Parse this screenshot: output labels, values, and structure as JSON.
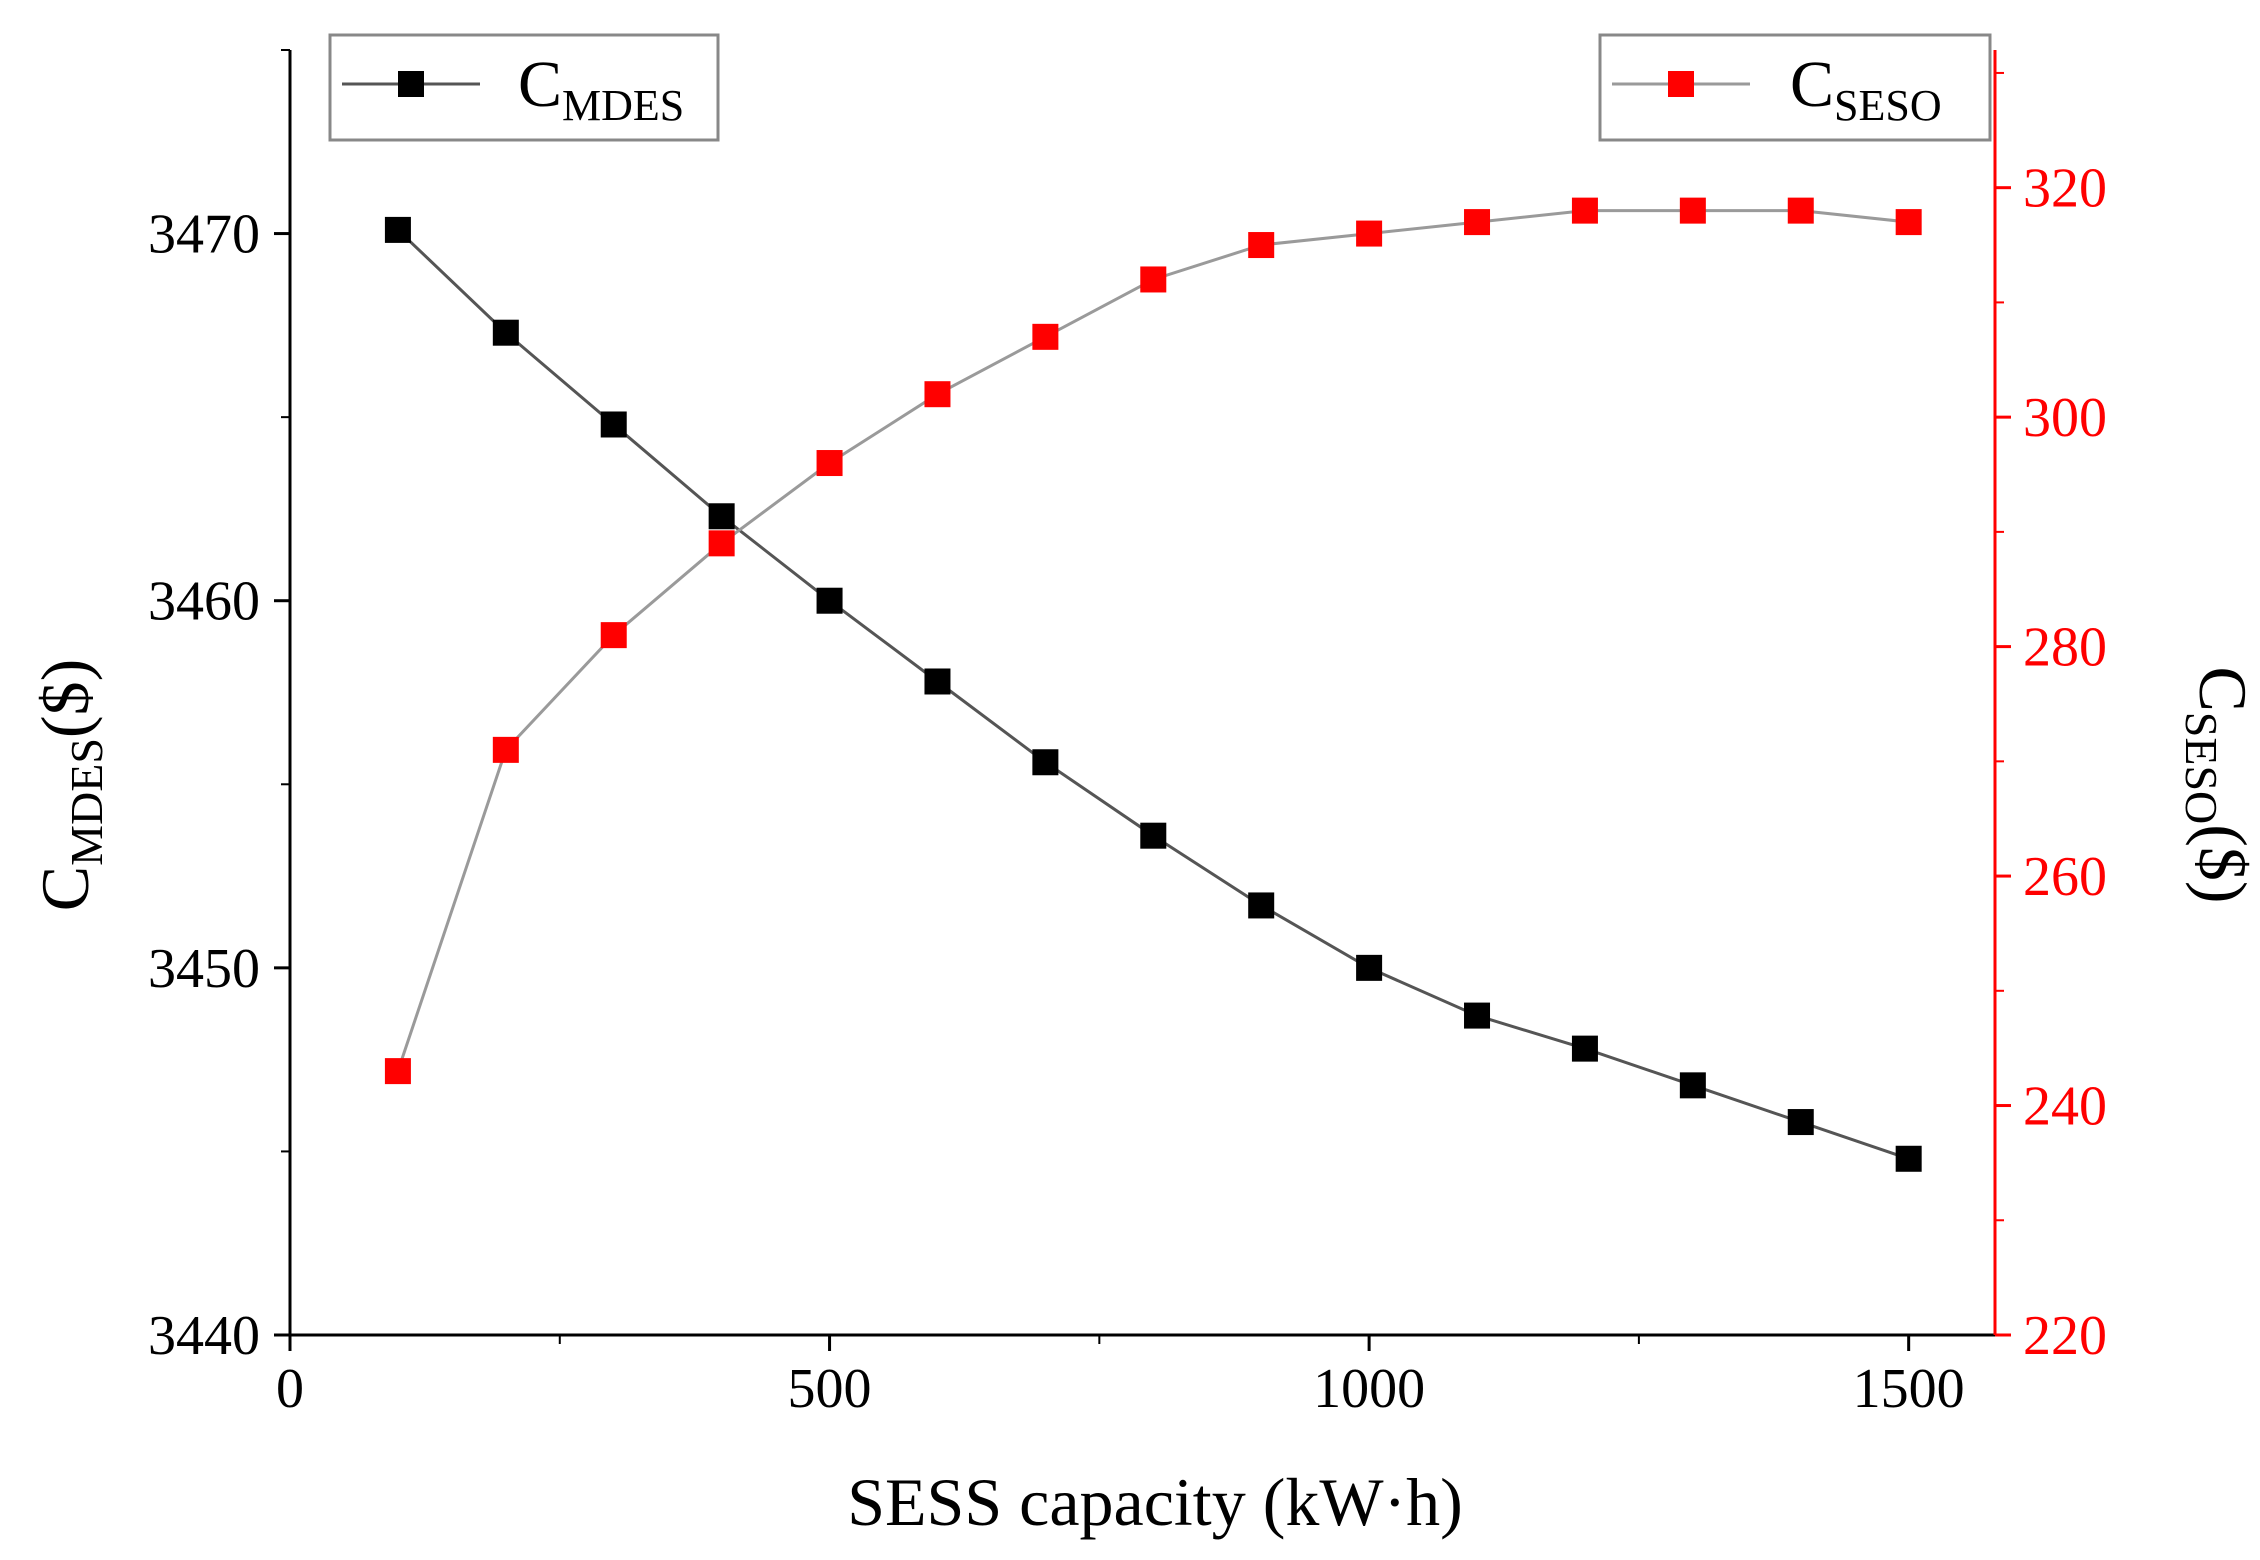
{
  "colors": {
    "left_series": "#000000",
    "right_series": "#ff0000",
    "right_axis": "#ff0000",
    "connector": "#9a9a9a"
  },
  "chart_data": {
    "type": "line",
    "xlabel": "SESS capacity (kW·h)",
    "ylabel_left": {
      "main": "C",
      "sub": "MDES",
      "suffix": "($)"
    },
    "ylabel_right": {
      "main": "C",
      "sub": "SESO",
      "suffix": "($)"
    },
    "xlim": [
      0,
      1580
    ],
    "xticks": [
      0,
      500,
      1000,
      1500
    ],
    "xtick_labels": [
      "0",
      "500",
      "1000",
      "1500"
    ],
    "ylim_left": [
      3440,
      3475
    ],
    "yticks_left": [
      3440,
      3450,
      3460,
      3470
    ],
    "ytick_labels_left": [
      "3440",
      "3450",
      "3460",
      "3470"
    ],
    "ylim_right": [
      220,
      332
    ],
    "yticks_right": [
      220,
      240,
      260,
      280,
      300,
      320
    ],
    "ytick_labels_right": [
      "220",
      "240",
      "260",
      "280",
      "300",
      "320"
    ],
    "x": [
      100,
      200,
      300,
      400,
      500,
      600,
      700,
      800,
      900,
      1000,
      1100,
      1200,
      1300,
      1400,
      1500
    ],
    "series": [
      {
        "name": "C_MDES",
        "legend_main": "C",
        "legend_sub": "MDES",
        "axis": "left",
        "marker": "square",
        "values": [
          3470.1,
          3467.3,
          3464.8,
          3462.3,
          3460.0,
          3457.8,
          3455.6,
          3453.6,
          3451.7,
          3450.0,
          3448.7,
          3447.8,
          3446.8,
          3445.8,
          3444.8
        ]
      },
      {
        "name": "C_SESO",
        "legend_main": "C",
        "legend_sub": "SESO",
        "axis": "right",
        "marker": "square",
        "values": [
          243,
          271,
          281,
          289,
          296,
          302,
          307,
          312,
          315,
          316,
          317,
          318,
          318,
          318,
          317
        ]
      }
    ],
    "legend": [
      {
        "series": "C_MDES",
        "placement": "top-left"
      },
      {
        "series": "C_SESO",
        "placement": "top-right"
      }
    ]
  }
}
